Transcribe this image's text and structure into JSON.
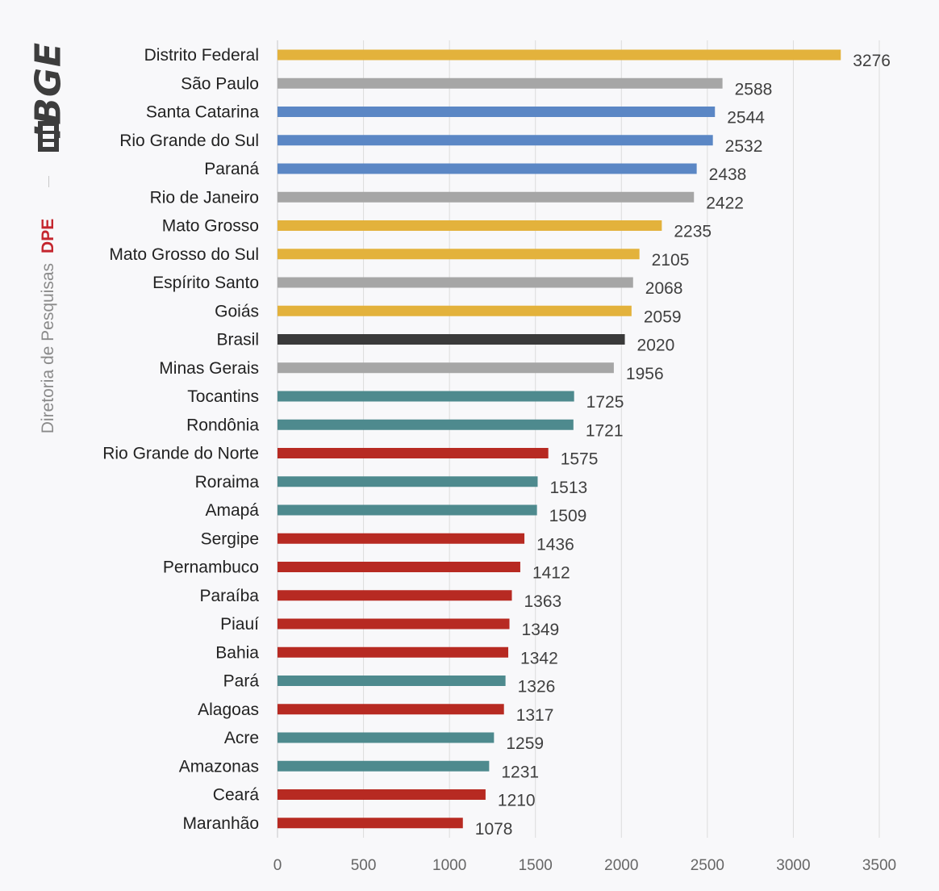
{
  "brand": {
    "logo_text": "IBGE",
    "department_name": "Diretoria de Pesquisas",
    "department_code": "DPE",
    "logo_color": "#3d3d3d",
    "code_color": "#c4262e"
  },
  "chart_data": {
    "type": "bar",
    "orientation": "horizontal",
    "title": "",
    "xlabel": "",
    "ylabel": "",
    "xlim": [
      0,
      3500
    ],
    "xticks": [
      0,
      500,
      1000,
      1500,
      2000,
      2500,
      3000,
      3500
    ],
    "grid": "vertical",
    "legend": "none",
    "categories": [
      "Distrito Federal",
      "São Paulo",
      "Santa Catarina",
      "Rio Grande do Sul",
      "Paraná",
      "Rio de Janeiro",
      "Mato Grosso",
      "Mato Grosso do Sul",
      "Espírito Santo",
      "Goiás",
      "Brasil",
      "Minas Gerais",
      "Tocantins",
      "Rondônia",
      "Rio Grande do Norte",
      "Roraima",
      "Amapá",
      "Sergipe",
      "Pernambuco",
      "Paraíba",
      "Piauí",
      "Bahia",
      "Pará",
      "Alagoas",
      "Acre",
      "Amazonas",
      "Ceará",
      "Maranhão"
    ],
    "values": [
      3276,
      2588,
      2544,
      2532,
      2438,
      2422,
      2235,
      2105,
      2068,
      2059,
      2020,
      1956,
      1725,
      1721,
      1575,
      1513,
      1509,
      1436,
      1412,
      1363,
      1349,
      1342,
      1326,
      1317,
      1259,
      1231,
      1210,
      1078
    ],
    "bar_colors": [
      "#e3b23c",
      "#a6a6a6",
      "#5b87c5",
      "#5b87c5",
      "#5b87c5",
      "#a6a6a6",
      "#e3b23c",
      "#e3b23c",
      "#a6a6a6",
      "#e3b23c",
      "#3a3a3a",
      "#a6a6a6",
      "#4e8a8e",
      "#4e8a8e",
      "#b72a22",
      "#4e8a8e",
      "#4e8a8e",
      "#b72a22",
      "#b72a22",
      "#b72a22",
      "#b72a22",
      "#b72a22",
      "#4e8a8e",
      "#b72a22",
      "#4e8a8e",
      "#4e8a8e",
      "#b72a22",
      "#b72a22"
    ]
  }
}
